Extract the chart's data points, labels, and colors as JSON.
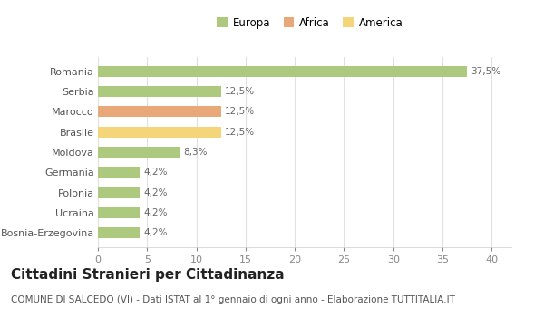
{
  "categories": [
    "Bosnia-Erzegovina",
    "Ucraina",
    "Polonia",
    "Germania",
    "Moldova",
    "Brasile",
    "Marocco",
    "Serbia",
    "Romania"
  ],
  "values": [
    4.2,
    4.2,
    4.2,
    4.2,
    8.3,
    12.5,
    12.5,
    12.5,
    37.5
  ],
  "bar_colors": [
    "#adc97e",
    "#adc97e",
    "#adc97e",
    "#adc97e",
    "#adc97e",
    "#f5d57a",
    "#e8a87a",
    "#adc97e",
    "#adc97e"
  ],
  "labels": [
    "4,2%",
    "4,2%",
    "4,2%",
    "4,2%",
    "8,3%",
    "12,5%",
    "12,5%",
    "12,5%",
    "37,5%"
  ],
  "xlim": [
    0,
    42
  ],
  "xticks": [
    0,
    5,
    10,
    15,
    20,
    25,
    30,
    35,
    40
  ],
  "legend_labels": [
    "Europa",
    "Africa",
    "America"
  ],
  "legend_colors": [
    "#adc97e",
    "#e8a87a",
    "#f5d57a"
  ],
  "title": "Cittadini Stranieri per Cittadinanza",
  "subtitle": "COMUNE DI SALCEDO (VI) - Dati ISTAT al 1° gennaio di ogni anno - Elaborazione TUTTITALIA.IT",
  "background_color": "#ffffff",
  "grid_color": "#e0e0e0",
  "bar_height": 0.55,
  "title_fontsize": 11,
  "subtitle_fontsize": 7.5,
  "label_fontsize": 7.5,
  "ytick_fontsize": 8,
  "xtick_fontsize": 8
}
